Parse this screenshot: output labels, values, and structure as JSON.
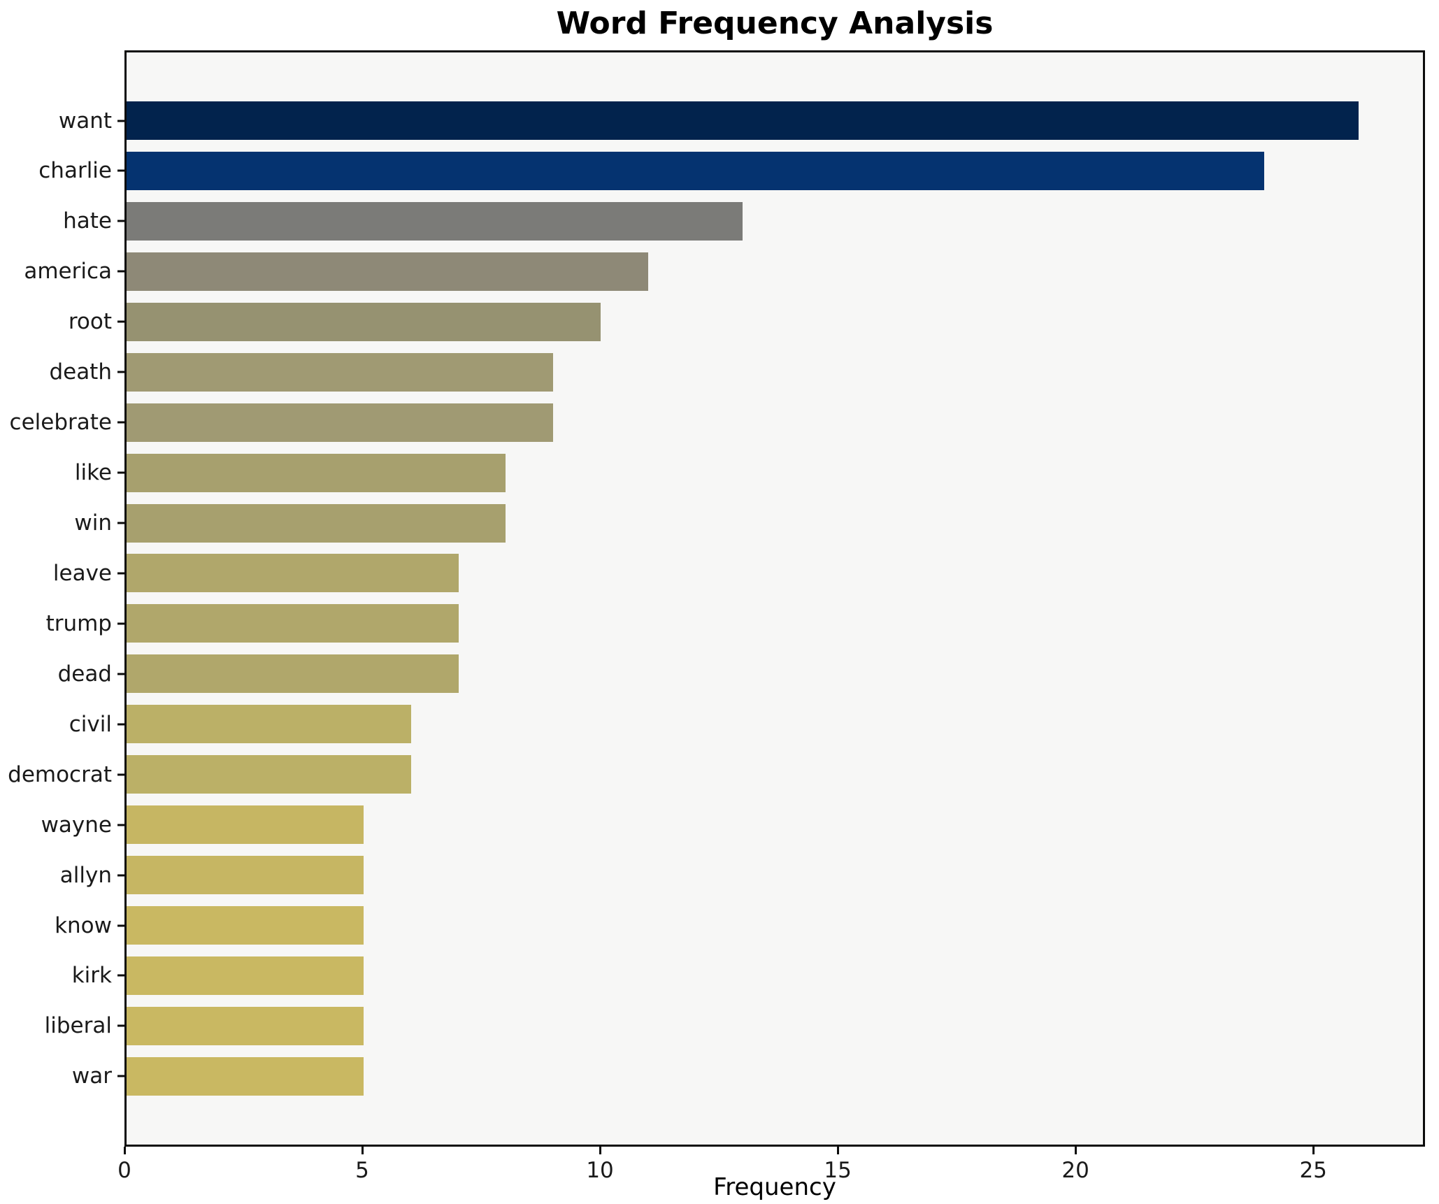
{
  "title": "Word Frequency Analysis",
  "axes": {
    "xlabel": "Frequency",
    "xticks": [
      0,
      5,
      10,
      15,
      20,
      25
    ],
    "xmax": 27.35
  },
  "colors": {
    "plot_background": "#f7f7f6",
    "figure_background": "#ffffff",
    "frame": "#0c0c0c",
    "text": "#1a1a1a"
  },
  "chart_data": {
    "type": "bar",
    "orientation": "horizontal",
    "title": "Word Frequency Analysis",
    "xlabel": "Frequency",
    "ylabel": "",
    "xlim": [
      0,
      27.35
    ],
    "xticks": [
      0,
      5,
      10,
      15,
      20,
      25
    ],
    "grid": false,
    "legend": "none",
    "categories": [
      "want",
      "charlie",
      "hate",
      "america",
      "root",
      "death",
      "celebrate",
      "like",
      "win",
      "leave",
      "trump",
      "dead",
      "civil",
      "democrat",
      "wayne",
      "allyn",
      "know",
      "kirk",
      "liberal",
      "war"
    ],
    "values": [
      26,
      24,
      13,
      11,
      10,
      9,
      9,
      8,
      8,
      7,
      7,
      7,
      6,
      6,
      5,
      5,
      5,
      5,
      5,
      5
    ],
    "bar_colors": [
      "#02234d",
      "#053370",
      "#7b7b78",
      "#8e8977",
      "#969271",
      "#a09a73",
      "#a09a73",
      "#a7a06e",
      "#a7a06e",
      "#b0a76b",
      "#b0a76b",
      "#b0a76b",
      "#bbb067",
      "#bbb067",
      "#c6b663",
      "#c6b663",
      "#c9b862",
      "#c9b862",
      "#c9b862",
      "#c9b862"
    ]
  }
}
